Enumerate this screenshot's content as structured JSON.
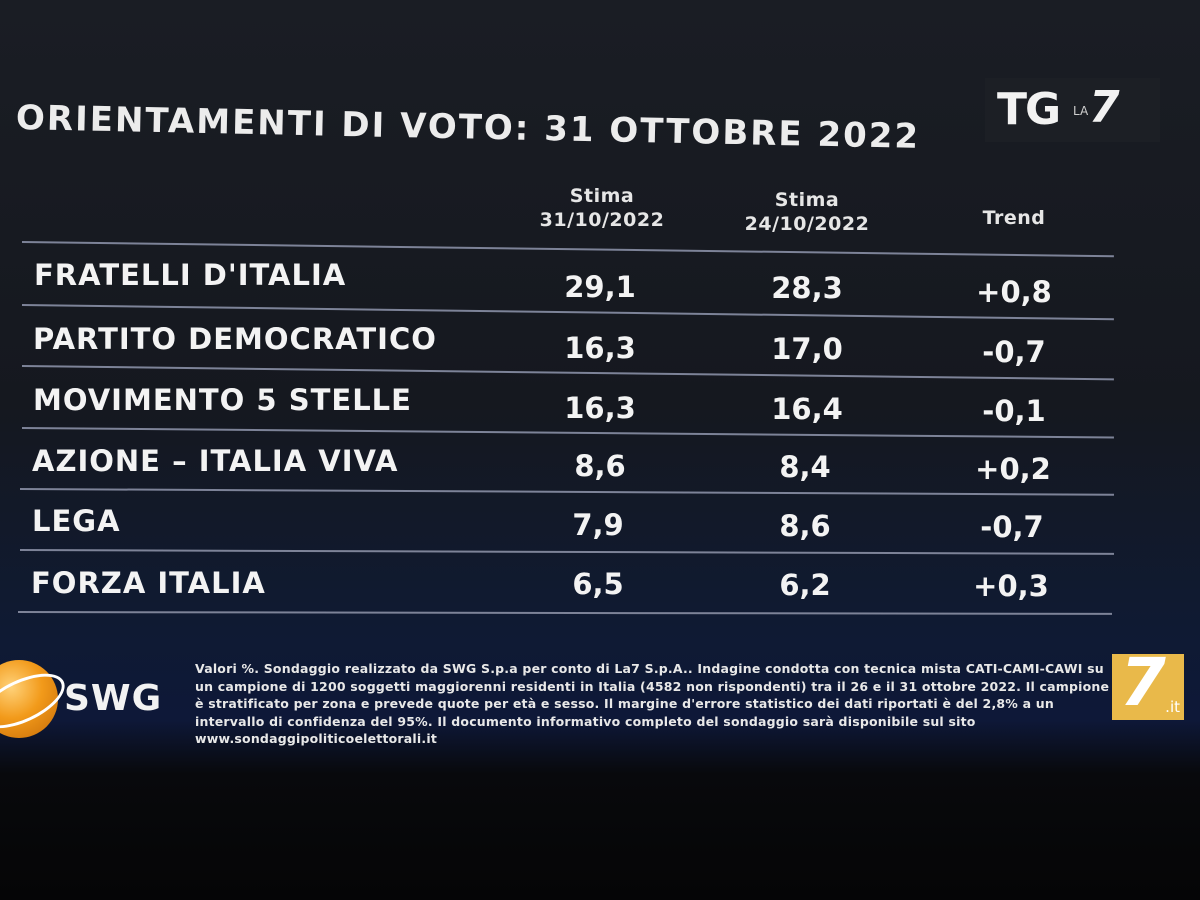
{
  "header": {
    "title": "ORIENTAMENTI DI VOTO: 31 OTTOBRE 2022",
    "logo": {
      "tg": "TG",
      "la": "LA",
      "seven": "7"
    }
  },
  "chart_data": {
    "type": "table",
    "columns": [
      {
        "line1": "Stima",
        "line2": "31/10/2022"
      },
      {
        "line1": "Stima",
        "line2": "24/10/2022"
      },
      {
        "line1": "Trend",
        "line2": ""
      }
    ],
    "rows": [
      {
        "party": "FRATELLI D'ITALIA",
        "stima_31_10": "29,1",
        "stima_24_10": "28,3",
        "trend": "+0,8"
      },
      {
        "party": "PARTITO DEMOCRATICO",
        "stima_31_10": "16,3",
        "stima_24_10": "17,0",
        "trend": "-0,7"
      },
      {
        "party": "MOVIMENTO 5 STELLE",
        "stima_31_10": "16,3",
        "stima_24_10": "16,4",
        "trend": "-0,1"
      },
      {
        "party": "AZIONE – ITALIA VIVA",
        "stima_31_10": "8,6",
        "stima_24_10": "8,4",
        "trend": "+0,2"
      },
      {
        "party": "LEGA",
        "stima_31_10": "7,9",
        "stima_24_10": "8,6",
        "trend": "-0,7"
      },
      {
        "party": "FORZA ITALIA",
        "stima_31_10": "6,5",
        "stima_24_10": "6,2",
        "trend": "+0,3"
      }
    ]
  },
  "footer": {
    "swg_logo": "SWG",
    "note": "Valori %. Sondaggio realizzato da SWG S.p.a per conto di La7 S.p.A.. Indagine condotta con tecnica mista CATI-CAMI-CAWI su un campione di 1200 soggetti maggiorenni residenti in Italia (4582 non rispondenti) tra il 26 e il 31 ottobre 2022. Il campione è stratificato per zona e prevede quote per età e sesso. Il margine d'errore statistico dei dati riportati è del 2,8% a un intervallo di confidenza del 95%. Il documento informativo completo del sondaggio sarà disponibile sul sito www.sondaggipoliticoelettorali.it",
    "la7_logo": {
      "seven": "7",
      "suffix": ".it"
    }
  },
  "colors": {
    "text": "#f3f3f3",
    "separator": "#7d8398",
    "swg_orange": "#f29a1a",
    "la7_gold": "#e9b94a"
  }
}
